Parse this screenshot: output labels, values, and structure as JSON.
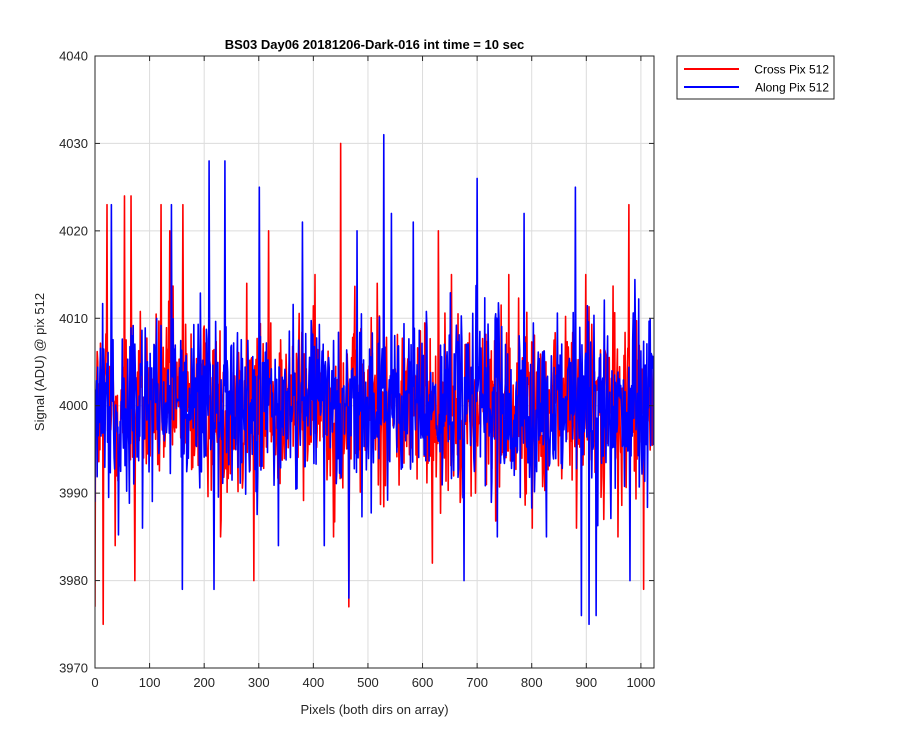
{
  "chart_data": {
    "type": "line",
    "title": "BS03 Day06 20181206-Dark-016 int time = 10 sec",
    "xlabel": "Pixels (both dirs on array)",
    "ylabel": "Signal (ADU) @ pix 512",
    "xlim": [
      0,
      1024
    ],
    "ylim": [
      3970,
      4040
    ],
    "xticks": [
      0,
      100,
      200,
      300,
      400,
      500,
      600,
      700,
      800,
      900,
      1000
    ],
    "yticks": [
      3970,
      3980,
      3990,
      4000,
      4010,
      4020,
      4030,
      4040
    ],
    "grid": true,
    "legend_position": "outside top-right",
    "series": [
      {
        "name": "Cross Pix 512",
        "color": "#ff0000",
        "mean": 4000,
        "std": 5,
        "noise_seed": 12345,
        "x": [
          0,
          15,
          22,
          37,
          54,
          66,
          73,
          121,
          137,
          161,
          230,
          278,
          291,
          318,
          437,
          450,
          465,
          517,
          618,
          629,
          653,
          697,
          758,
          801,
          882,
          899,
          958,
          978,
          1005,
          1024
        ],
        "values": [
          3977,
          3975,
          4023,
          3984,
          4024,
          4024,
          3980,
          4023,
          4020,
          4023,
          3985,
          4014,
          3980,
          4020,
          3985,
          4030,
          3977,
          4014,
          3982,
          4020,
          4015,
          3990,
          4015,
          3986,
          3986,
          4015,
          3985,
          4023,
          3979,
          4000
        ]
      },
      {
        "name": "Along Pix 512",
        "color": "#0000ff",
        "mean": 4000,
        "std": 5,
        "noise_seed": 67890,
        "x": [
          0,
          30,
          87,
          140,
          160,
          209,
          218,
          238,
          301,
          336,
          380,
          420,
          465,
          480,
          529,
          543,
          583,
          676,
          700,
          737,
          786,
          827,
          880,
          891,
          905,
          918,
          980,
          1024
        ],
        "values": [
          3989,
          4023,
          3986,
          4023,
          3979,
          4028,
          3979,
          4028,
          4025,
          3984,
          4021,
          3984,
          3978,
          4020,
          4031,
          4022,
          4021,
          3980,
          4026,
          3985,
          4022,
          3985,
          4025,
          3976,
          3975,
          3976,
          3980,
          4000
        ]
      }
    ]
  }
}
